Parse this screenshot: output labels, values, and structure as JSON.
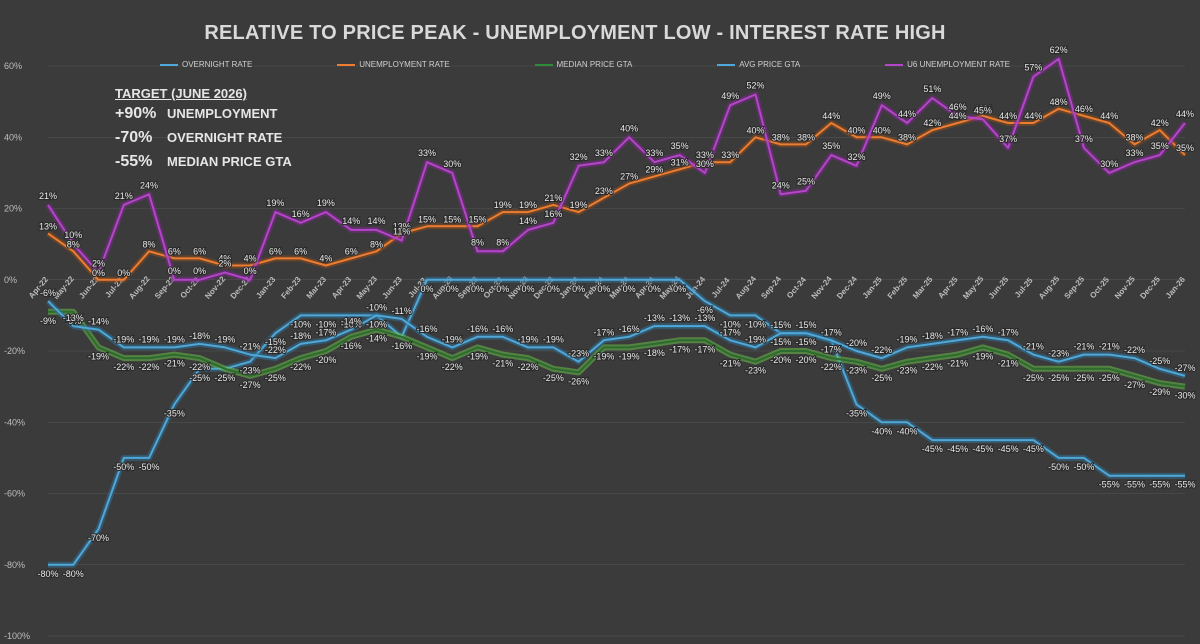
{
  "chart_data": {
    "type": "line",
    "title": "RELATIVE TO PRICE PEAK - UNEMPLOYMENT LOW - INTEREST RATE HIGH",
    "ylim": [
      -100,
      60
    ],
    "yticks": [
      60,
      40,
      20,
      0,
      -20,
      -40,
      -60,
      -80,
      -100
    ],
    "ytick_labels": [
      "60%",
      "40%",
      "20%",
      "0%",
      "-20%",
      "-40%",
      "-60%",
      "-80%",
      "-100%"
    ],
    "categories": [
      "Apr-22",
      "May-22",
      "Jun-22",
      "Jul-22",
      "Aug-22",
      "Sep-22",
      "Oct-22",
      "Nov-22",
      "Dec-22",
      "Jan-23",
      "Feb-23",
      "Mar-23",
      "Apr-23",
      "May-23",
      "Jun-23",
      "Jul-23",
      "Aug-23",
      "Sep-23",
      "Oct-23",
      "Nov-23",
      "Dec-23",
      "Jan-24",
      "Feb-24",
      "Mar-24",
      "Apr-24",
      "May-24",
      "Jun-24",
      "Jul-24",
      "Aug-24",
      "Sep-24",
      "Oct-24",
      "Nov-24",
      "Dec-24",
      "Jan-25",
      "Feb-25",
      "Mar-25",
      "Apr-25",
      "May-25",
      "Jun-25",
      "Jul-25",
      "Aug-25",
      "Sep-25",
      "Oct-25",
      "Nov-25",
      "Dec-25",
      "Jan-26"
    ],
    "series": [
      {
        "name": "OVERNIGHT RATE",
        "color": "#4fa8d8",
        "glow": "#2f6f95",
        "values": [
          null,
          null,
          null,
          null,
          null,
          null,
          null,
          null,
          null,
          null,
          null,
          null,
          null,
          null,
          null,
          0,
          0,
          0,
          0,
          0,
          0,
          0,
          0,
          0,
          0,
          0,
          null,
          null,
          null,
          null,
          null,
          null,
          null,
          null,
          null,
          null,
          null,
          null,
          null,
          null,
          null,
          null,
          null,
          null,
          null,
          null
        ]
      },
      {
        "name": "UNEMPLOYMENT RATE",
        "color": "#ed7d31",
        "glow": "#8a4a1e",
        "values": [
          13,
          8,
          0,
          0,
          8,
          6,
          6,
          4,
          4,
          6,
          6,
          4,
          6,
          8,
          13,
          15,
          15,
          15,
          19,
          19,
          21,
          19,
          23,
          27,
          29,
          31,
          33,
          33,
          40,
          38,
          38,
          44,
          40,
          40,
          38,
          42,
          44,
          46,
          44,
          44,
          48,
          46,
          44,
          38,
          42,
          35
        ]
      },
      {
        "name": "MEDIAN PRICE GTA",
        "color": "#2e6b2e",
        "glow": "#6abf4b",
        "values": [
          -9,
          -9,
          -19,
          -22,
          -22,
          -21,
          -22,
          -25,
          -27,
          -25,
          -22,
          -20,
          -16,
          -14,
          -16,
          -19,
          -22,
          -19,
          -21,
          -22,
          -25,
          -26,
          -19,
          -19,
          -18,
          -17,
          -17,
          -21,
          -23,
          -20,
          -20,
          -22,
          -23,
          -25,
          -23,
          -22,
          -21,
          -19,
          -21,
          -25,
          -25,
          -25,
          -25,
          -27,
          -29,
          -30
        ]
      },
      {
        "name": "AVG PRICE GTA",
        "color": "#4fa8d8",
        "glow": "#2f6f95",
        "values": [
          -6,
          -13,
          -14,
          -19,
          -19,
          -19,
          -18,
          -19,
          -21,
          -22,
          -18,
          -17,
          -14,
          -10,
          -11,
          -16,
          -19,
          -16,
          -16,
          -19,
          -19,
          -23,
          -17,
          -16,
          -13,
          -13,
          -13,
          -17,
          -19,
          -15,
          -15,
          -17,
          -20,
          -22,
          -19,
          -18,
          -17,
          -16,
          -17,
          -21,
          -23,
          -21,
          -21,
          -22,
          -25,
          -27
        ]
      },
      {
        "name": "U6 UNEMPLOYMENT RATE",
        "color": "#b545c8",
        "glow": "#7a2a8a",
        "values": [
          21,
          10,
          2,
          21,
          24,
          0,
          0,
          2,
          0,
          19,
          16,
          19,
          14,
          14,
          11,
          33,
          30,
          8,
          8,
          14,
          16,
          32,
          33,
          40,
          33,
          35,
          30,
          49,
          52,
          24,
          25,
          35,
          32,
          49,
          44,
          51,
          46,
          45,
          37,
          57,
          62,
          37,
          30,
          33,
          35,
          44
        ]
      }
    ],
    "overnight_rate_full": [
      -80,
      -80,
      -70,
      -50,
      -50,
      -35,
      -25,
      -25,
      -23,
      -15,
      -10,
      -10,
      -10,
      -10,
      -16,
      0,
      0,
      0,
      0,
      0,
      0,
      0,
      0,
      0,
      0,
      0,
      -6,
      -10,
      -10,
      -15,
      -15,
      -17,
      -35,
      -40,
      -40,
      -45,
      -45,
      -45,
      -45,
      -45,
      -50,
      -50,
      -55,
      -55,
      -55,
      -55
    ],
    "label_fields": {
      "OVERNIGHT RATE": [
        "-80%",
        "-80%",
        "-70%",
        "-50%",
        "-50%",
        "-35%",
        "-25%",
        "-25%",
        "-23%",
        "-15%",
        "-10%",
        "-10%",
        "-10%",
        "-10%",
        "-16%",
        "0%",
        "0%",
        "0%",
        "0%",
        "0%",
        "0%",
        "0%",
        "0%",
        "0%",
        "0%",
        "0%",
        "-6%",
        "-10%",
        "-10%",
        "-15%",
        "-15%",
        "-17%",
        "-35%",
        "-40%",
        "-40%",
        "-45%",
        "-45%",
        "-45%",
        "-45%",
        "-45%",
        "-50%",
        "-50%",
        "-55%",
        "-55%",
        "-55%",
        "-55%"
      ]
    }
  },
  "legend": [
    {
      "label": "OVERNIGHT RATE",
      "color": "#4fa8d8"
    },
    {
      "label": "UNEMPLOYMENT RATE",
      "color": "#ed7d31"
    },
    {
      "label": "MEDIAN PRICE GTA",
      "color": "#2e8b3a"
    },
    {
      "label": "AVG PRICE GTA",
      "color": "#4fa8d8"
    },
    {
      "label": "U6 UNEMPLOYMENT RATE",
      "color": "#b545c8"
    }
  ],
  "target": {
    "heading": "TARGET (JUNE 2026)",
    "rows": [
      {
        "value": "+90%",
        "label": "UNEMPLOYMENT"
      },
      {
        "value": "-70%",
        "label": "OVERNIGHT RATE"
      },
      {
        "value": "-55%",
        "label": "MEDIAN PRICE GTA"
      }
    ]
  },
  "colors": {
    "background": "#3b3b3b",
    "gridline": "#555555",
    "axis_text": "#bdbdbd"
  }
}
